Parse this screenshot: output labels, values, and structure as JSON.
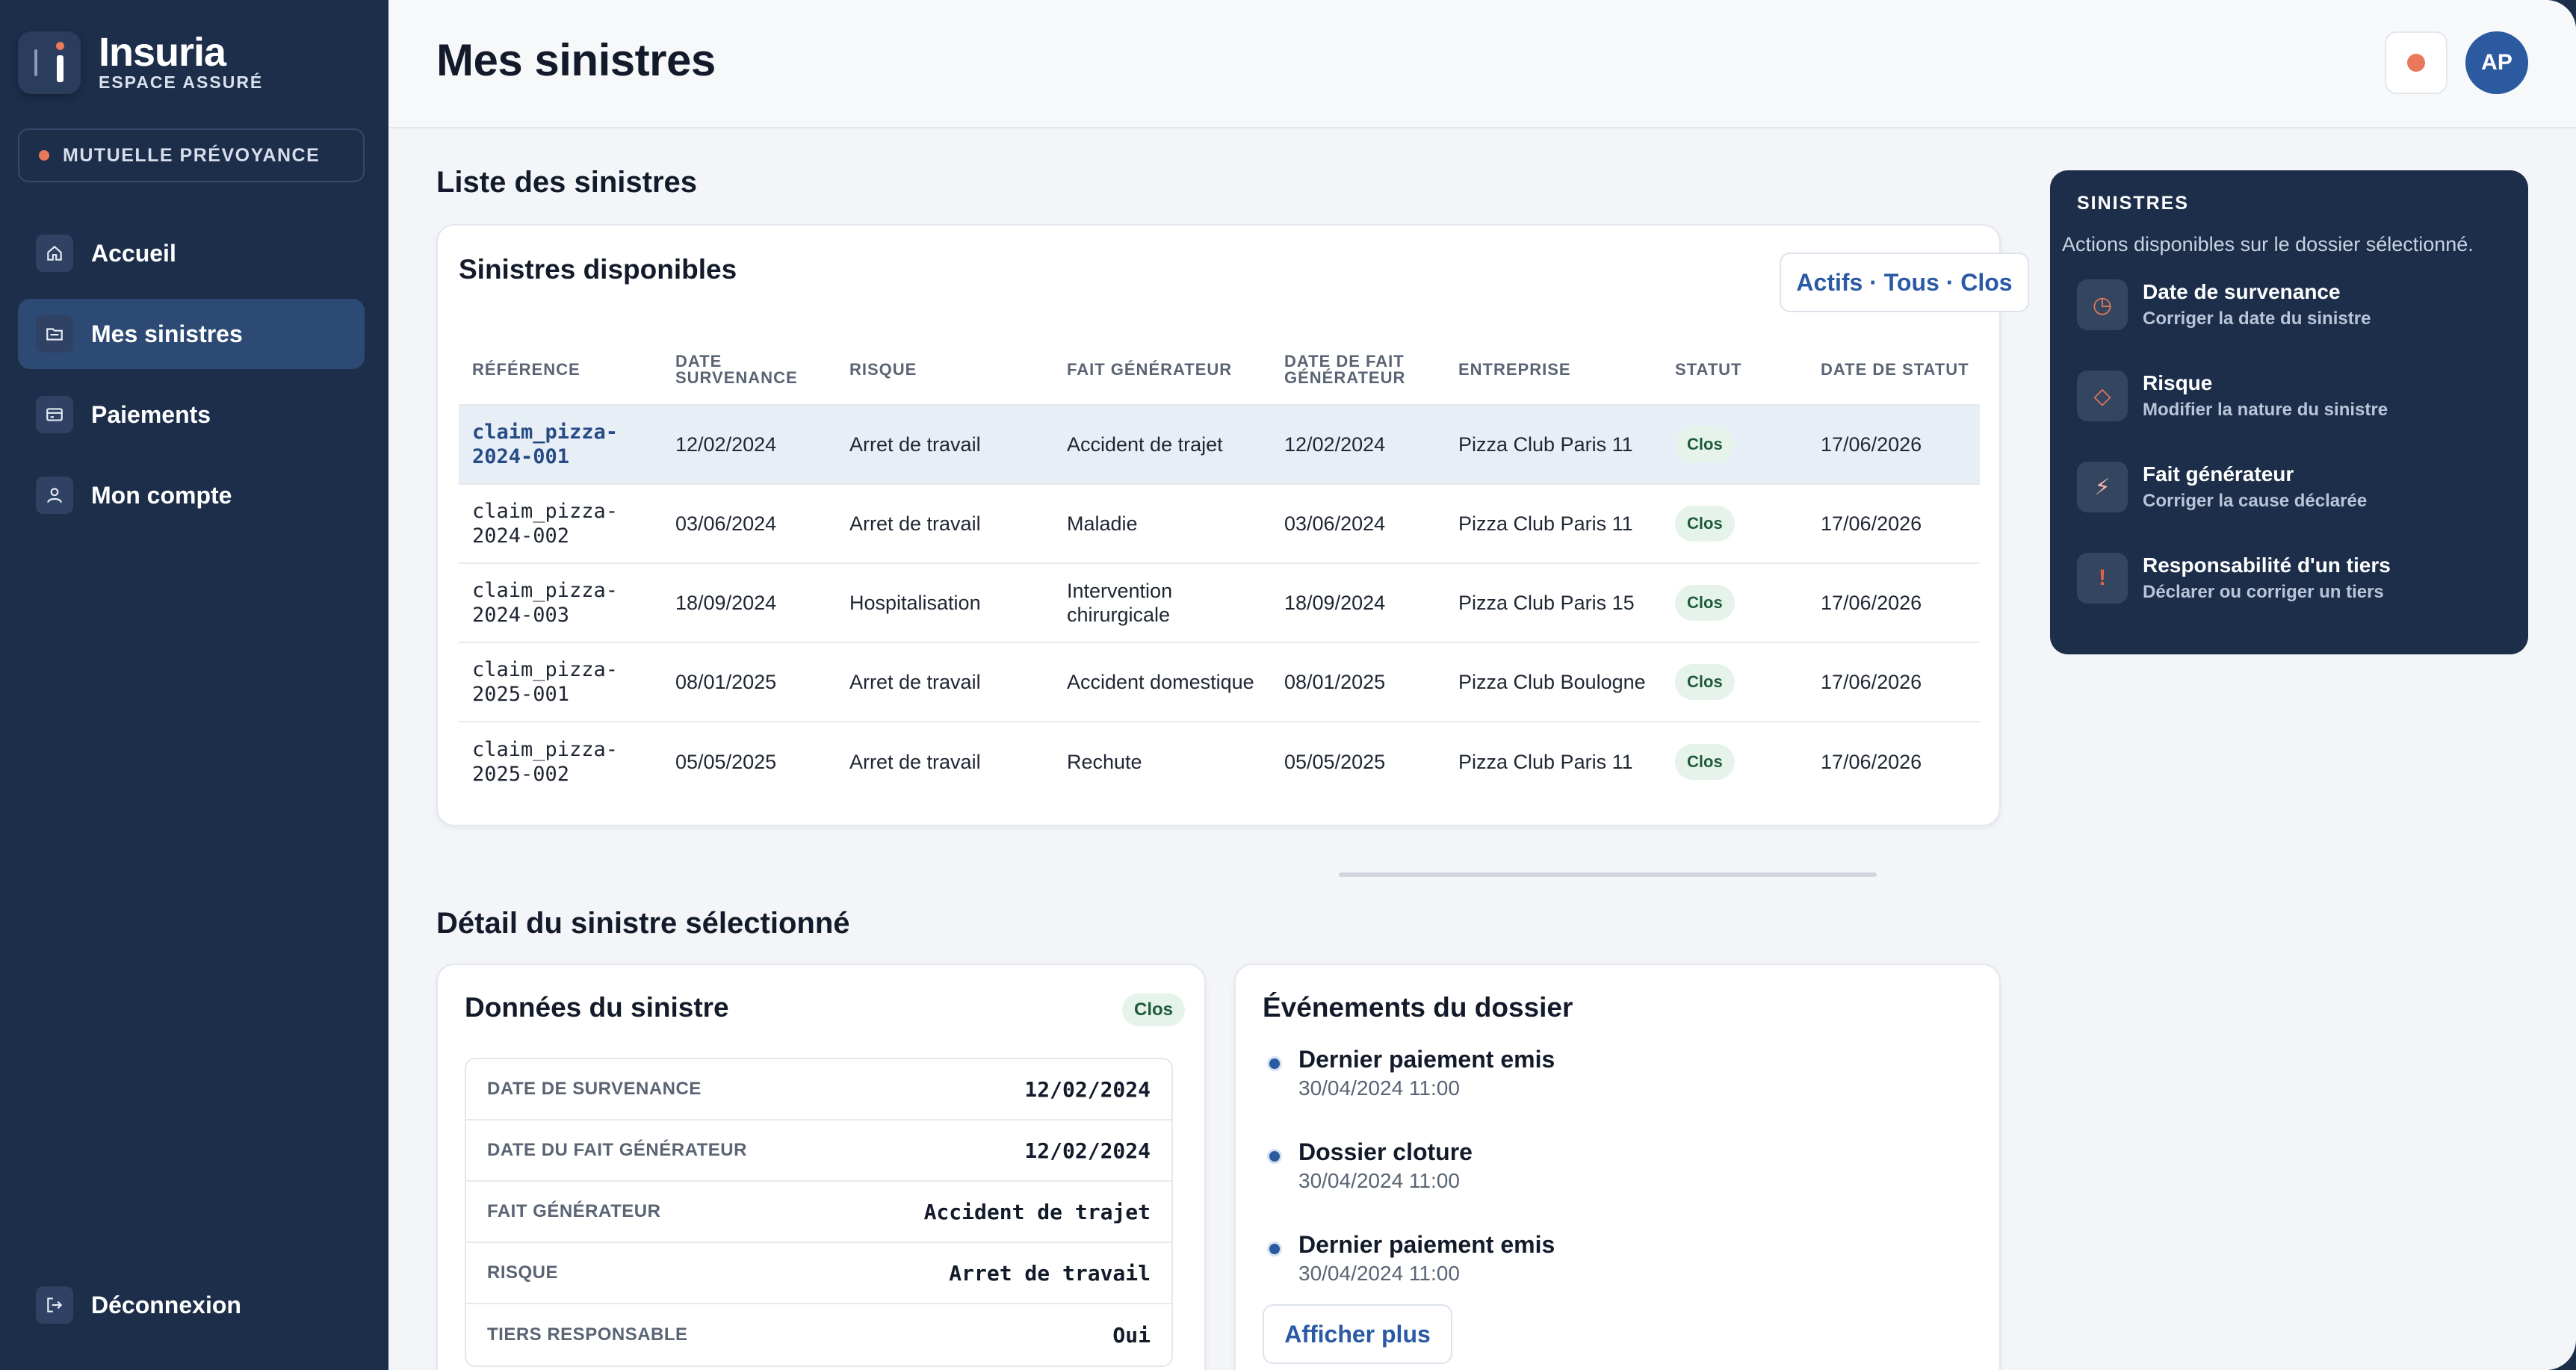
{
  "brand": {
    "name": "Insuria",
    "subtitle": "ESPACE ASSURÉ"
  },
  "organization": "MUTUELLE PRÉVOYANCE",
  "nav": [
    {
      "label": "Accueil",
      "icon": "home-icon",
      "active": false
    },
    {
      "label": "Mes sinistres",
      "icon": "folder-icon",
      "active": true
    },
    {
      "label": "Paiements",
      "icon": "card-icon",
      "active": false
    },
    {
      "label": "Mon compte",
      "icon": "user-icon",
      "active": false
    }
  ],
  "logout": "Déconnexion",
  "header": {
    "title": "Mes sinistres",
    "avatar_initials": "AP"
  },
  "list": {
    "section_title": "Liste des sinistres",
    "card_title": "Sinistres disponibles",
    "filter_label": "Actifs · Tous · Clos",
    "columns": [
      "RÉFÉRENCE",
      "DATE SURVENANCE",
      "RISQUE",
      "FAIT GÉNÉRATEUR",
      "DATE DE FAIT GÉNÉRATEUR",
      "ENTREPRISE",
      "STATUT",
      "DATE DE STATUT"
    ],
    "rows": [
      {
        "ref": "claim_pizza-2024-001",
        "date": "12/02/2024",
        "risque": "Arret de travail",
        "fait": "Accident de trajet",
        "date_fait": "12/02/2024",
        "entreprise": "Pizza Club Paris 11",
        "statut": "Clos",
        "date_statut": "17/06/2026"
      },
      {
        "ref": "claim_pizza-2024-002",
        "date": "03/06/2024",
        "risque": "Arret de travail",
        "fait": "Maladie",
        "date_fait": "03/06/2024",
        "entreprise": "Pizza Club Paris 11",
        "statut": "Clos",
        "date_statut": "17/06/2026"
      },
      {
        "ref": "claim_pizza-2024-003",
        "date": "18/09/2024",
        "risque": "Hospitalisation",
        "fait": "Intervention chirurgicale",
        "date_fait": "18/09/2024",
        "entreprise": "Pizza Club Paris 15",
        "statut": "Clos",
        "date_statut": "17/06/2026"
      },
      {
        "ref": "claim_pizza-2025-001",
        "date": "08/01/2025",
        "risque": "Arret de travail",
        "fait": "Accident domestique",
        "date_fait": "08/01/2025",
        "entreprise": "Pizza Club Boulogne",
        "statut": "Clos",
        "date_statut": "17/06/2026"
      },
      {
        "ref": "claim_pizza-2025-002",
        "date": "05/05/2025",
        "risque": "Arret de travail",
        "fait": "Rechute",
        "date_fait": "05/05/2025",
        "entreprise": "Pizza Club Paris 11",
        "statut": "Clos",
        "date_statut": "17/06/2026"
      }
    ]
  },
  "detail": {
    "section_title": "Détail du sinistre sélectionné",
    "data_card_title": "Données du sinistre",
    "status_badge": "Clos",
    "fields": [
      {
        "label": "DATE DE SURVENANCE",
        "value": "12/02/2024"
      },
      {
        "label": "DATE DU FAIT GÉNÉRATEUR",
        "value": "12/02/2024"
      },
      {
        "label": "FAIT GÉNÉRATEUR",
        "value": "Accident de trajet"
      },
      {
        "label": "RISQUE",
        "value": "Arret de travail"
      },
      {
        "label": "TIERS RESPONSABLE",
        "value": "Oui"
      }
    ],
    "events_title": "Événements du dossier",
    "events": [
      {
        "title": "Dernier paiement emis",
        "date": "30/04/2024 11:00"
      },
      {
        "title": "Dossier cloture",
        "date": "30/04/2024 11:00"
      },
      {
        "title": "Dernier paiement emis",
        "date": "30/04/2024 11:00"
      }
    ],
    "more_label": "Afficher plus"
  },
  "actions": {
    "title": "SINISTRES",
    "subtitle": "Actions disponibles sur le dossier sélectionné.",
    "items": [
      {
        "title": "Date de survenance",
        "subtitle": "Corriger la date du sinistre",
        "icon": "clock-icon",
        "glyph": "◷"
      },
      {
        "title": "Risque",
        "subtitle": "Modifier la nature du sinistre",
        "icon": "diamond-icon",
        "glyph": "◇"
      },
      {
        "title": "Fait générateur",
        "subtitle": "Corriger la cause déclarée",
        "icon": "lightning-icon",
        "glyph": "⚡"
      },
      {
        "title": "Responsabilité d'un tiers",
        "subtitle": "Déclarer ou corriger un tiers",
        "icon": "exclamation-icon",
        "glyph": "!"
      }
    ]
  },
  "colors": {
    "sidebar": "#1c2e4a",
    "accent": "#2b5aa1",
    "orange": "#e8795a",
    "badge_bg": "#e6f3ea",
    "badge_text": "#1e5b3a"
  }
}
